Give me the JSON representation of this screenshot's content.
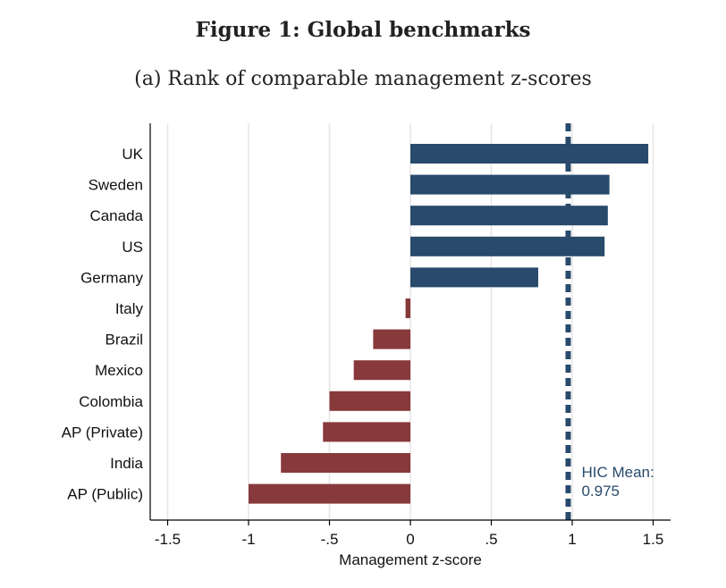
{
  "figure_title": "Figure 1: Global benchmarks",
  "subtitle": "(a) Rank of comparable management z-scores",
  "chart_data": {
    "type": "bar",
    "orientation": "horizontal",
    "categories": [
      "UK",
      "Sweden",
      "Canada",
      "US",
      "Germany",
      "Italy",
      "Brazil",
      "Mexico",
      "Colombia",
      "AP (Private)",
      "India",
      "AP (Public)"
    ],
    "values": [
      1.47,
      1.23,
      1.22,
      1.2,
      0.79,
      -0.03,
      -0.23,
      -0.35,
      -0.5,
      -0.54,
      -0.8,
      -1.0
    ],
    "xlabel": "Management z-score",
    "ylabel": "",
    "xlim": [
      -1.6,
      1.6
    ],
    "xticks": [
      -1.5,
      -1,
      -0.5,
      0,
      0.5,
      1,
      1.5
    ],
    "xtick_labels": [
      "-1.5",
      "-1",
      "-.5",
      "0",
      ".5",
      "1",
      "1.5"
    ],
    "grid": "vertical",
    "colors": {
      "positive": "#284a6b",
      "negative": "#88393c",
      "grid": "#e6e6e6",
      "reference": "#284a6b"
    },
    "reference_line": {
      "value": 0.975,
      "style": "dashed",
      "label_line1": "HIC Mean:",
      "label_line2": "0.975"
    }
  }
}
